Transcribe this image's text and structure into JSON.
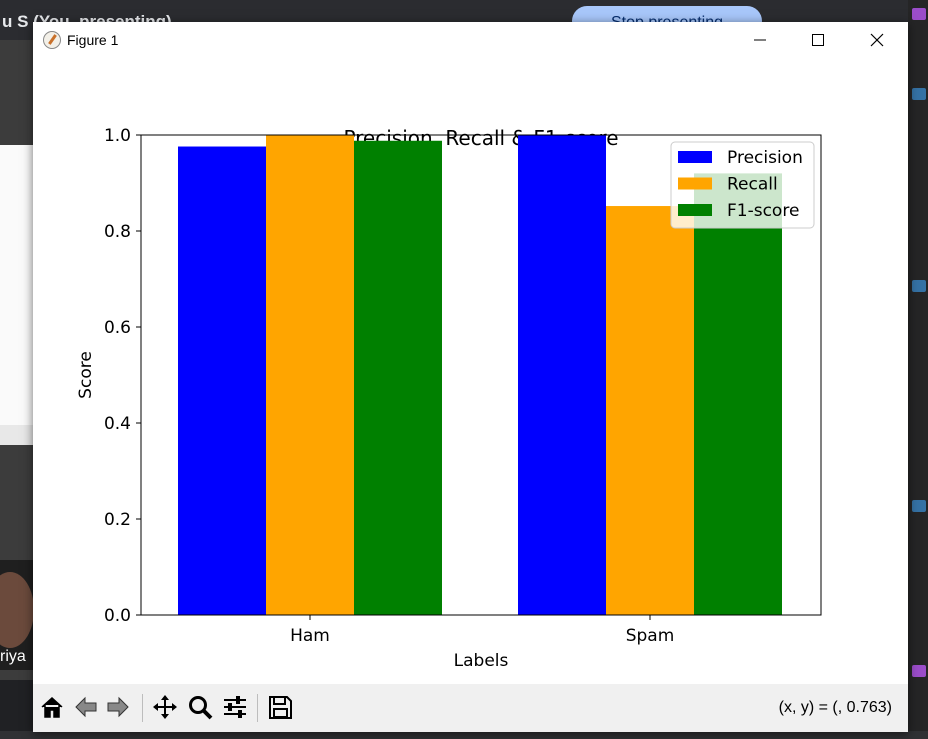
{
  "background": {
    "presenter_name": "u S (You, presenting)",
    "stop_button": "Stop presenting",
    "participant_name": "riya"
  },
  "window": {
    "title": "Figure 1",
    "icon": "matplotlib-icon",
    "controls": [
      "minimize-icon",
      "maximize-icon",
      "close-icon"
    ]
  },
  "chart_data": {
    "type": "bar",
    "title": "Precision, Recall & F1-score",
    "xlabel": "Labels",
    "ylabel": "Score",
    "categories": [
      "Ham",
      "Spam"
    ],
    "series": [
      {
        "name": "Precision",
        "color": "#0000ff",
        "values": [
          0.976,
          1.0
        ]
      },
      {
        "name": "Recall",
        "color": "#ffa500",
        "values": [
          1.0,
          0.852
        ]
      },
      {
        "name": "F1-score",
        "color": "#008000",
        "values": [
          0.988,
          0.92
        ]
      }
    ],
    "ylim": [
      0,
      1.0
    ],
    "yticks": [
      "0.0",
      "0.2",
      "0.4",
      "0.6",
      "0.8",
      "1.0"
    ],
    "grid": false,
    "legend_position": "top-right"
  },
  "toolbar": {
    "tools": [
      "home-icon",
      "back-icon",
      "forward-icon",
      "pan-icon",
      "zoom-icon",
      "configure-subplots-icon",
      "save-icon"
    ],
    "coords": "(x, y) = (, 0.763)"
  }
}
